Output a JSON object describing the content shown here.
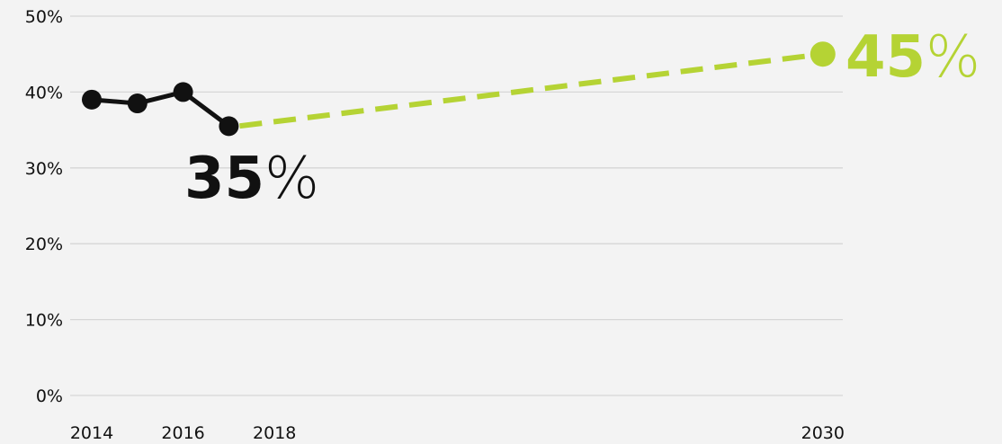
{
  "chart_data": {
    "type": "line",
    "title": "",
    "xlabel": "",
    "ylabel": "",
    "ylim": [
      0,
      50
    ],
    "xlim": [
      2013.5,
      2030
    ],
    "grid": true,
    "y_ticks": [
      "0%",
      "10%",
      "20%",
      "30%",
      "40%",
      "50%"
    ],
    "x_ticks": [
      "2014",
      "2016",
      "2018",
      "2030"
    ],
    "series": [
      {
        "style": "solid",
        "color": "#111111",
        "points": [
          {
            "x": 2014,
            "y": 39
          },
          {
            "x": 2015,
            "y": 38.5
          },
          {
            "x": 2016,
            "y": 40
          },
          {
            "x": 2017,
            "y": 35.5
          }
        ]
      },
      {
        "style": "dashed",
        "color": "#b5d334",
        "points": [
          {
            "x": 2017,
            "y": 35.5
          },
          {
            "x": 2030,
            "y": 45
          }
        ]
      }
    ],
    "annotations": [
      {
        "number": "35",
        "unit": "%",
        "color": "#111111"
      },
      {
        "number": "45",
        "unit": "%",
        "color": "#b5d334"
      }
    ]
  }
}
